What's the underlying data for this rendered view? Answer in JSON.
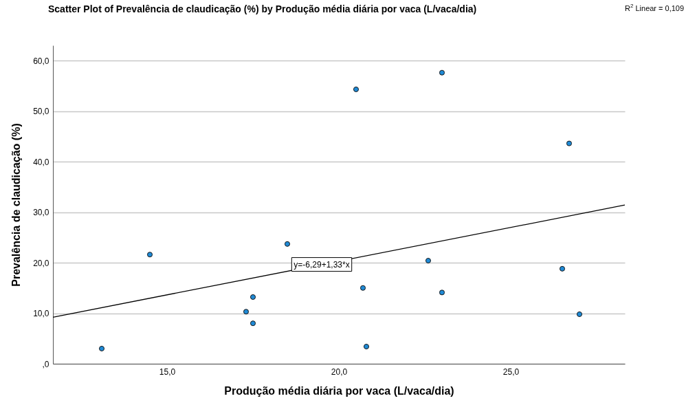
{
  "chart_data": {
    "type": "scatter",
    "title": "Scatter Plot of Prevalência de claudicação (%) by Produção média diária por vaca (L/vaca/dia)",
    "xlabel": "Produção média diária por vaca (L/vaca/dia)",
    "ylabel": "Prevalência de claudicação (%)",
    "xlim": [
      11.68,
      28.32
    ],
    "ylim": [
      0,
      63
    ],
    "xticks": [
      {
        "value": 15,
        "label": "15,0"
      },
      {
        "value": 20,
        "label": "20,0"
      },
      {
        "value": 25,
        "label": "25,0"
      }
    ],
    "yticks": [
      {
        "value": 0,
        "label": ",0"
      },
      {
        "value": 10,
        "label": "10,0"
      },
      {
        "value": 20,
        "label": "20,0"
      },
      {
        "value": 30,
        "label": "30,0"
      },
      {
        "value": 40,
        "label": "40,0"
      },
      {
        "value": 50,
        "label": "50,0"
      },
      {
        "value": 60,
        "label": "60,0"
      }
    ],
    "grid": "y",
    "series": [
      {
        "type": "scatter",
        "marker": "circle",
        "color": "#1f8ad6",
        "x": [
          13.1,
          14.5,
          17.3,
          17.5,
          17.5,
          18.5,
          20.5,
          20.7,
          20.8,
          22.6,
          23.0,
          23.0,
          26.5,
          26.7,
          27.0
        ],
        "values": [
          3.0,
          21.6,
          10.3,
          13.2,
          8.0,
          23.7,
          54.3,
          15.0,
          3.4,
          20.4,
          57.6,
          14.1,
          18.8,
          43.6,
          9.8
        ]
      },
      {
        "type": "line",
        "marker": "none",
        "color": "#000000",
        "x": [
          11.68,
          28.32
        ],
        "values": [
          9.2,
          31.4
        ]
      }
    ],
    "annotations": [
      {
        "text": "y=-6,29+1,33*x",
        "x": 19.5,
        "y": 19.65
      },
      "R$^{2}$ Linear = 0,109"
    ]
  }
}
